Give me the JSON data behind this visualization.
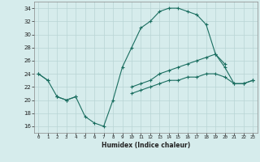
{
  "xlabel": "Humidex (Indice chaleur)",
  "x": [
    0,
    1,
    2,
    3,
    4,
    5,
    6,
    7,
    8,
    9,
    10,
    11,
    12,
    13,
    14,
    15,
    16,
    17,
    18,
    19,
    20,
    21,
    22,
    23
  ],
  "line1": [
    24,
    23,
    20.5,
    20,
    20.5,
    17.5,
    16.5,
    16,
    20,
    25,
    28,
    31,
    32,
    33.5,
    34,
    34,
    33.5,
    33,
    31.5,
    27,
    25.5,
    null,
    null,
    null
  ],
  "line2": [
    24,
    23,
    null,
    null,
    null,
    null,
    null,
    null,
    null,
    null,
    null,
    null,
    null,
    null,
    null,
    null,
    null,
    null,
    null,
    null,
    null,
    null,
    null,
    23
  ],
  "line3": [
    null,
    null,
    20.5,
    20,
    20.5,
    null,
    null,
    null,
    null,
    null,
    22,
    22.5,
    23,
    24,
    24.5,
    25,
    25.5,
    26,
    26.5,
    27,
    25,
    22.5,
    22.5,
    23
  ],
  "line4": [
    null,
    null,
    20.5,
    null,
    null,
    null,
    null,
    null,
    null,
    null,
    21,
    21.5,
    22,
    22.5,
    23,
    23,
    23.5,
    23.5,
    24,
    24,
    23.5,
    22.5,
    22.5,
    23
  ],
  "bg_color": "#d6ecec",
  "grid_color": "#b8d4d4",
  "line_color": "#1a6e60",
  "ylim": [
    15,
    35
  ],
  "xlim": [
    -0.5,
    23.5
  ],
  "yticks": [
    16,
    18,
    20,
    22,
    24,
    26,
    28,
    30,
    32,
    34
  ],
  "xticks": [
    0,
    1,
    2,
    3,
    4,
    5,
    6,
    7,
    8,
    9,
    10,
    11,
    12,
    13,
    14,
    15,
    16,
    17,
    18,
    19,
    20,
    21,
    22,
    23
  ]
}
